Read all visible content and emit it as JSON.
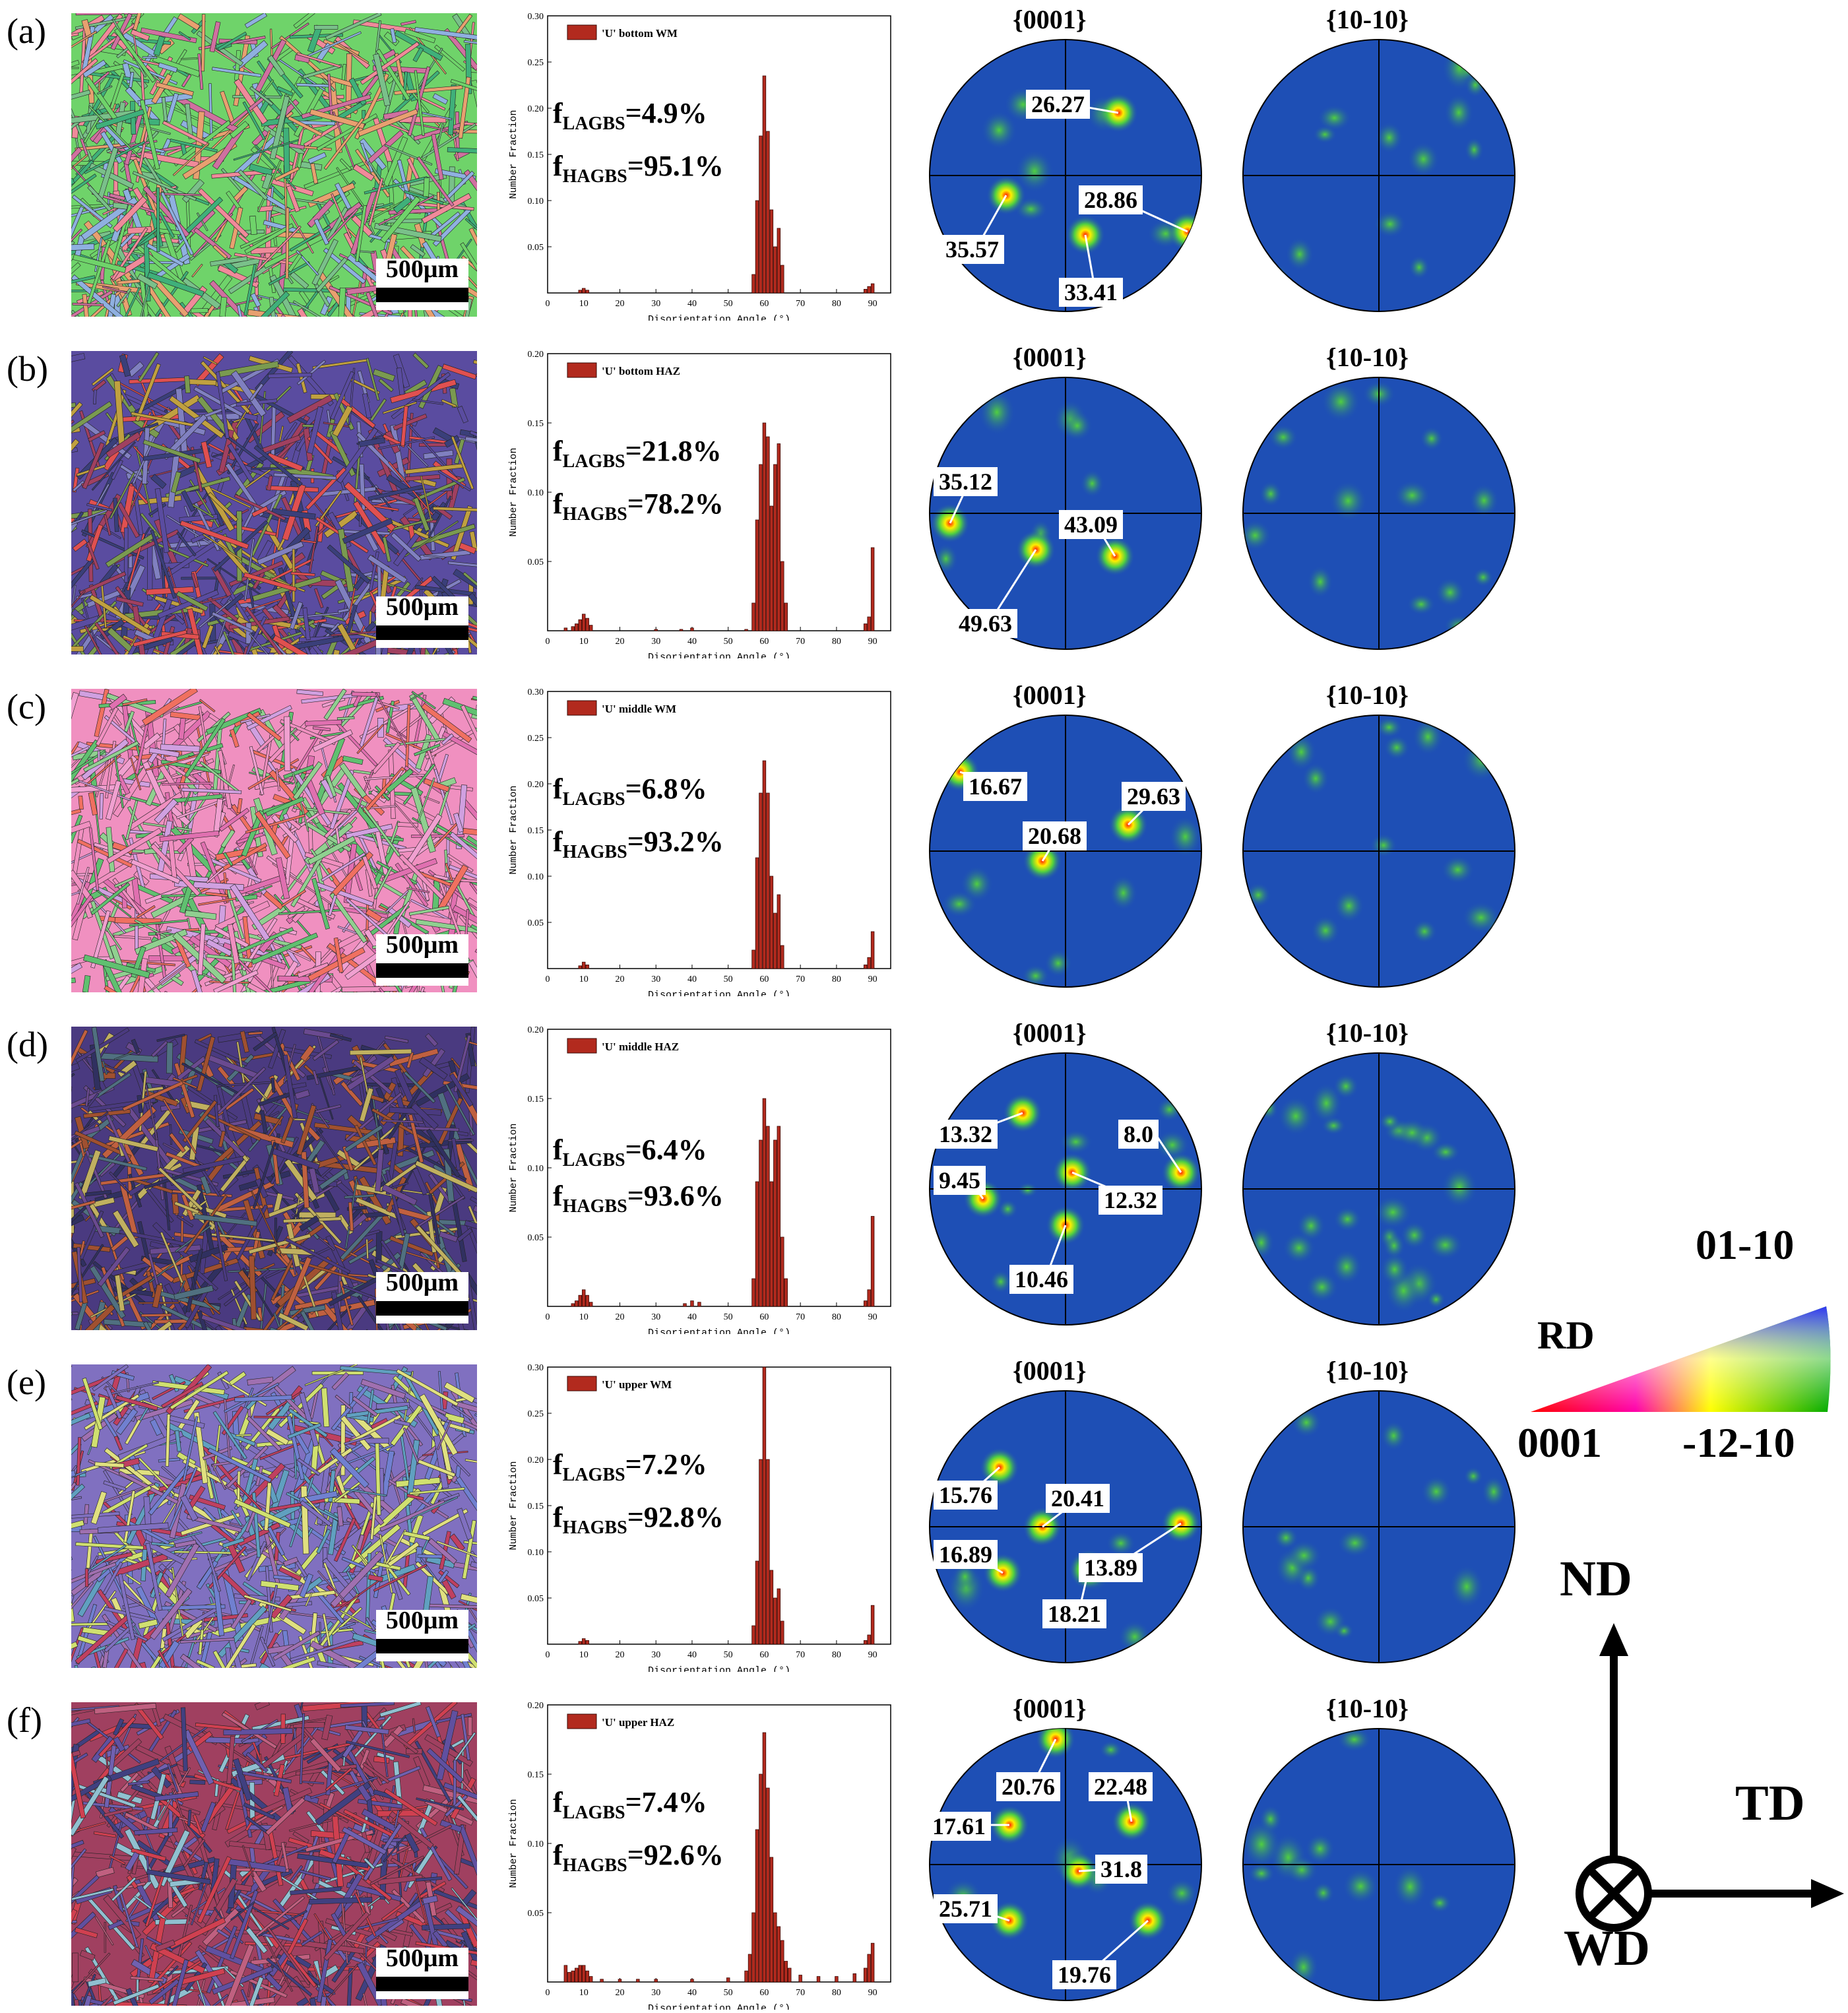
{
  "panels": [
    {
      "letter": "(a)",
      "legend": "'U' bottom WM",
      "f_lagbs": "=4.9%",
      "f_hagbs": "=95.1%",
      "ymax": 0.3,
      "yticks": [
        "0.05",
        "0.10",
        "0.15",
        "0.20",
        "0.25",
        "0.30"
      ],
      "pf1_labels": [
        "26.27",
        "35.57",
        "28.86",
        "33.41"
      ],
      "palette": "a"
    },
    {
      "letter": "(b)",
      "legend": "'U' bottom HAZ",
      "f_lagbs": "=21.8%",
      "f_hagbs": "=78.2%",
      "ymax": 0.2,
      "yticks": [
        "0.05",
        "0.10",
        "0.15",
        "0.20"
      ],
      "pf1_labels": [
        "35.12",
        "43.09",
        "49.63"
      ],
      "palette": "b"
    },
    {
      "letter": "(c)",
      "legend": "'U' middle WM",
      "f_lagbs": "=6.8%",
      "f_hagbs": "=93.2%",
      "ymax": 0.3,
      "yticks": [
        "0.05",
        "0.10",
        "0.15",
        "0.20",
        "0.25",
        "0.30"
      ],
      "pf1_labels": [
        "16.67",
        "29.63",
        "20.68"
      ],
      "palette": "c"
    },
    {
      "letter": "(d)",
      "legend": "'U' middle HAZ",
      "f_lagbs": "=6.4%",
      "f_hagbs": "=93.6%",
      "ymax": 0.2,
      "yticks": [
        "0.05",
        "0.10",
        "0.15",
        "0.20"
      ],
      "pf1_labels": [
        "13.32",
        "8.0",
        "9.45",
        "12.32",
        "10.46"
      ],
      "palette": "d"
    },
    {
      "letter": "(e)",
      "legend": "'U' upper WM",
      "f_lagbs": "=7.2%",
      "f_hagbs": "=92.8%",
      "ymax": 0.3,
      "yticks": [
        "0.05",
        "0.10",
        "0.15",
        "0.20",
        "0.25",
        "0.30"
      ],
      "pf1_labels": [
        "15.76",
        "20.41",
        "13.89",
        "16.89",
        "18.21"
      ],
      "palette": "e"
    },
    {
      "letter": "(f)",
      "legend": "'U' upper HAZ",
      "f_lagbs": "=7.4%",
      "f_hagbs": "=92.6%",
      "ymax": 0.2,
      "yticks": [
        "0.05",
        "0.10",
        "0.15",
        "0.20"
      ],
      "pf1_labels": [
        "20.76",
        "22.48",
        "17.61",
        "31.8",
        "25.71",
        "19.76"
      ],
      "palette": "f"
    }
  ],
  "common": {
    "scale_text": "500μm",
    "ylabel": "Number Fraction",
    "xlabel": "Disorientation Angle (°)",
    "xticks": [
      "0",
      "10",
      "20",
      "30",
      "40",
      "50",
      "60",
      "70",
      "80",
      "90"
    ],
    "pf1_title": "{0001}",
    "pf2_title": "{10-10}",
    "f_l_main": "f",
    "f_l_sub": "LAGBS",
    "f_h_main": "f",
    "f_h_sub": "HAGBS"
  },
  "chart_data": [
    {
      "type": "bar",
      "title": "",
      "legend": "'U' bottom WM",
      "xlabel": "Disorientation Angle (°)",
      "ylabel": "Number Fraction",
      "ylim": [
        0,
        0.3
      ],
      "xlim": [
        0,
        95
      ],
      "x": [
        9,
        10,
        11,
        57,
        58,
        59,
        60,
        61,
        62,
        63,
        64,
        65,
        88,
        89,
        90
      ],
      "values": [
        0.003,
        0.005,
        0.003,
        0.02,
        0.1,
        0.17,
        0.235,
        0.175,
        0.09,
        0.05,
        0.07,
        0.03,
        0.004,
        0.007,
        0.01
      ]
    },
    {
      "type": "bar",
      "title": "",
      "legend": "'U' bottom HAZ",
      "xlabel": "Disorientation Angle (°)",
      "ylabel": "Number Fraction",
      "ylim": [
        0,
        0.2
      ],
      "xlim": [
        0,
        95
      ],
      "x": [
        5,
        7,
        8,
        9,
        10,
        11,
        12,
        30,
        37,
        40,
        55,
        57,
        58,
        59,
        60,
        61,
        62,
        63,
        64,
        65,
        66,
        88,
        89,
        90
      ],
      "values": [
        0.002,
        0.003,
        0.005,
        0.008,
        0.012,
        0.009,
        0.004,
        0.001,
        0.001,
        0.002,
        0.001,
        0.02,
        0.08,
        0.12,
        0.15,
        0.14,
        0.09,
        0.12,
        0.135,
        0.05,
        0.02,
        0.005,
        0.01,
        0.06
      ]
    },
    {
      "type": "bar",
      "title": "",
      "legend": "'U' middle WM",
      "xlabel": "Disorientation Angle (°)",
      "ylabel": "Number Fraction",
      "ylim": [
        0,
        0.3
      ],
      "xlim": [
        0,
        95
      ],
      "x": [
        9,
        10,
        11,
        57,
        58,
        59,
        60,
        61,
        62,
        63,
        64,
        65,
        88,
        89,
        90
      ],
      "values": [
        0.003,
        0.007,
        0.004,
        0.02,
        0.12,
        0.19,
        0.225,
        0.19,
        0.1,
        0.06,
        0.08,
        0.025,
        0.004,
        0.012,
        0.04
      ]
    },
    {
      "type": "bar",
      "title": "",
      "legend": "'U' middle HAZ",
      "xlabel": "Disorientation Angle (°)",
      "ylabel": "Number Fraction",
      "ylim": [
        0,
        0.2
      ],
      "xlim": [
        0,
        95
      ],
      "x": [
        7,
        8,
        9,
        10,
        11,
        12,
        38,
        40,
        42,
        57,
        58,
        59,
        60,
        61,
        62,
        63,
        64,
        65,
        66,
        88,
        89,
        90
      ],
      "values": [
        0.002,
        0.004,
        0.008,
        0.012,
        0.008,
        0.003,
        0.002,
        0.004,
        0.003,
        0.02,
        0.09,
        0.12,
        0.15,
        0.13,
        0.09,
        0.12,
        0.13,
        0.05,
        0.02,
        0.004,
        0.012,
        0.065
      ]
    },
    {
      "type": "bar",
      "title": "",
      "legend": "'U' upper WM",
      "xlabel": "Disorientation Angle (°)",
      "ylabel": "Number Fraction",
      "ylim": [
        0,
        0.3
      ],
      "xlim": [
        0,
        95
      ],
      "x": [
        9,
        10,
        11,
        57,
        58,
        59,
        60,
        61,
        62,
        63,
        64,
        65,
        88,
        89,
        90
      ],
      "values": [
        0.003,
        0.006,
        0.004,
        0.02,
        0.09,
        0.2,
        0.3,
        0.2,
        0.08,
        0.05,
        0.06,
        0.025,
        0.004,
        0.01,
        0.042
      ]
    },
    {
      "type": "bar",
      "title": "",
      "legend": "'U' upper HAZ",
      "xlabel": "Disorientation Angle (°)",
      "ylabel": "Number Fraction",
      "ylim": [
        0,
        0.2
      ],
      "xlim": [
        0,
        95
      ],
      "x": [
        5,
        6,
        7,
        8,
        9,
        10,
        11,
        12,
        15,
        20,
        25,
        30,
        40,
        50,
        55,
        56,
        57,
        58,
        59,
        60,
        61,
        62,
        63,
        64,
        65,
        66,
        67,
        70,
        75,
        80,
        85,
        88,
        89,
        90
      ],
      "values": [
        0.012,
        0.007,
        0.008,
        0.01,
        0.012,
        0.012,
        0.008,
        0.004,
        0.002,
        0.002,
        0.002,
        0.002,
        0.002,
        0.003,
        0.008,
        0.02,
        0.05,
        0.11,
        0.15,
        0.18,
        0.14,
        0.09,
        0.05,
        0.04,
        0.03,
        0.015,
        0.01,
        0.005,
        0.004,
        0.004,
        0.006,
        0.01,
        0.02,
        0.028
      ]
    }
  ],
  "legend_ipf": {
    "top": "01-10",
    "left": "RD",
    "bl": "0001",
    "br": "-12-10"
  },
  "axes": {
    "nd": "ND",
    "td": "TD",
    "wd": "WD"
  }
}
